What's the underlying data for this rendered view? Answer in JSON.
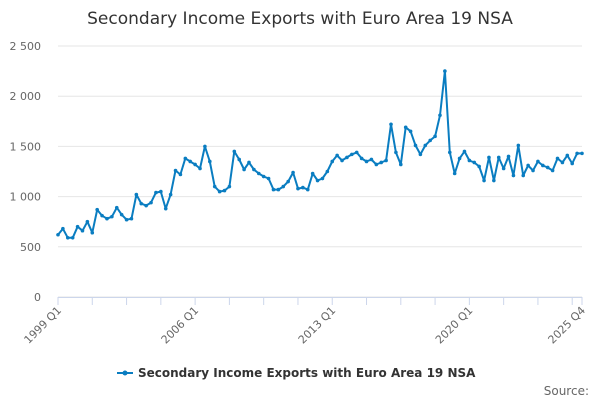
{
  "chart_data": {
    "type": "line",
    "title": "Secondary Income Exports with Euro Area 19 NSA",
    "xlabel": "",
    "ylabel": "",
    "ylim": [
      0,
      2500
    ],
    "yticks": [
      "0",
      "500",
      "1 000",
      "1 500",
      "2 000",
      "2 500"
    ],
    "ytick_values": [
      0,
      500,
      1000,
      1500,
      2000,
      2500
    ],
    "xtick_labels": [
      "1999 Q1",
      "2006 Q1",
      "2013 Q1",
      "2020 Q1",
      "2025 Q4"
    ],
    "xtick_label_indices": [
      0,
      28,
      56,
      84,
      107
    ],
    "grid": true,
    "legend_position": "bottom",
    "color": "#0a7dc1",
    "start": "1999 Q1",
    "end": "2025 Q4",
    "series": [
      {
        "name": "Secondary Income Exports with Euro Area 19 NSA",
        "values": [
          620,
          680,
          590,
          590,
          700,
          660,
          750,
          640,
          870,
          810,
          780,
          800,
          890,
          820,
          770,
          780,
          1020,
          930,
          910,
          940,
          1040,
          1050,
          880,
          1020,
          1260,
          1220,
          1380,
          1350,
          1320,
          1280,
          1500,
          1350,
          1100,
          1050,
          1060,
          1100,
          1450,
          1370,
          1270,
          1340,
          1270,
          1230,
          1200,
          1180,
          1070,
          1070,
          1100,
          1150,
          1240,
          1080,
          1090,
          1070,
          1230,
          1160,
          1180,
          1250,
          1350,
          1410,
          1360,
          1390,
          1420,
          1440,
          1380,
          1350,
          1370,
          1320,
          1340,
          1360,
          1720,
          1440,
          1320,
          1690,
          1650,
          1510,
          1420,
          1510,
          1560,
          1600,
          1810,
          2250,
          1440,
          1230,
          1380,
          1450,
          1360,
          1340,
          1300,
          1160,
          1390,
          1160,
          1390,
          1280,
          1400,
          1210,
          1510,
          1210,
          1310,
          1260,
          1350,
          1310,
          1290,
          1260,
          1380,
          1340,
          1410,
          1330,
          1430,
          1430
        ]
      }
    ],
    "source_label": "Source:"
  }
}
